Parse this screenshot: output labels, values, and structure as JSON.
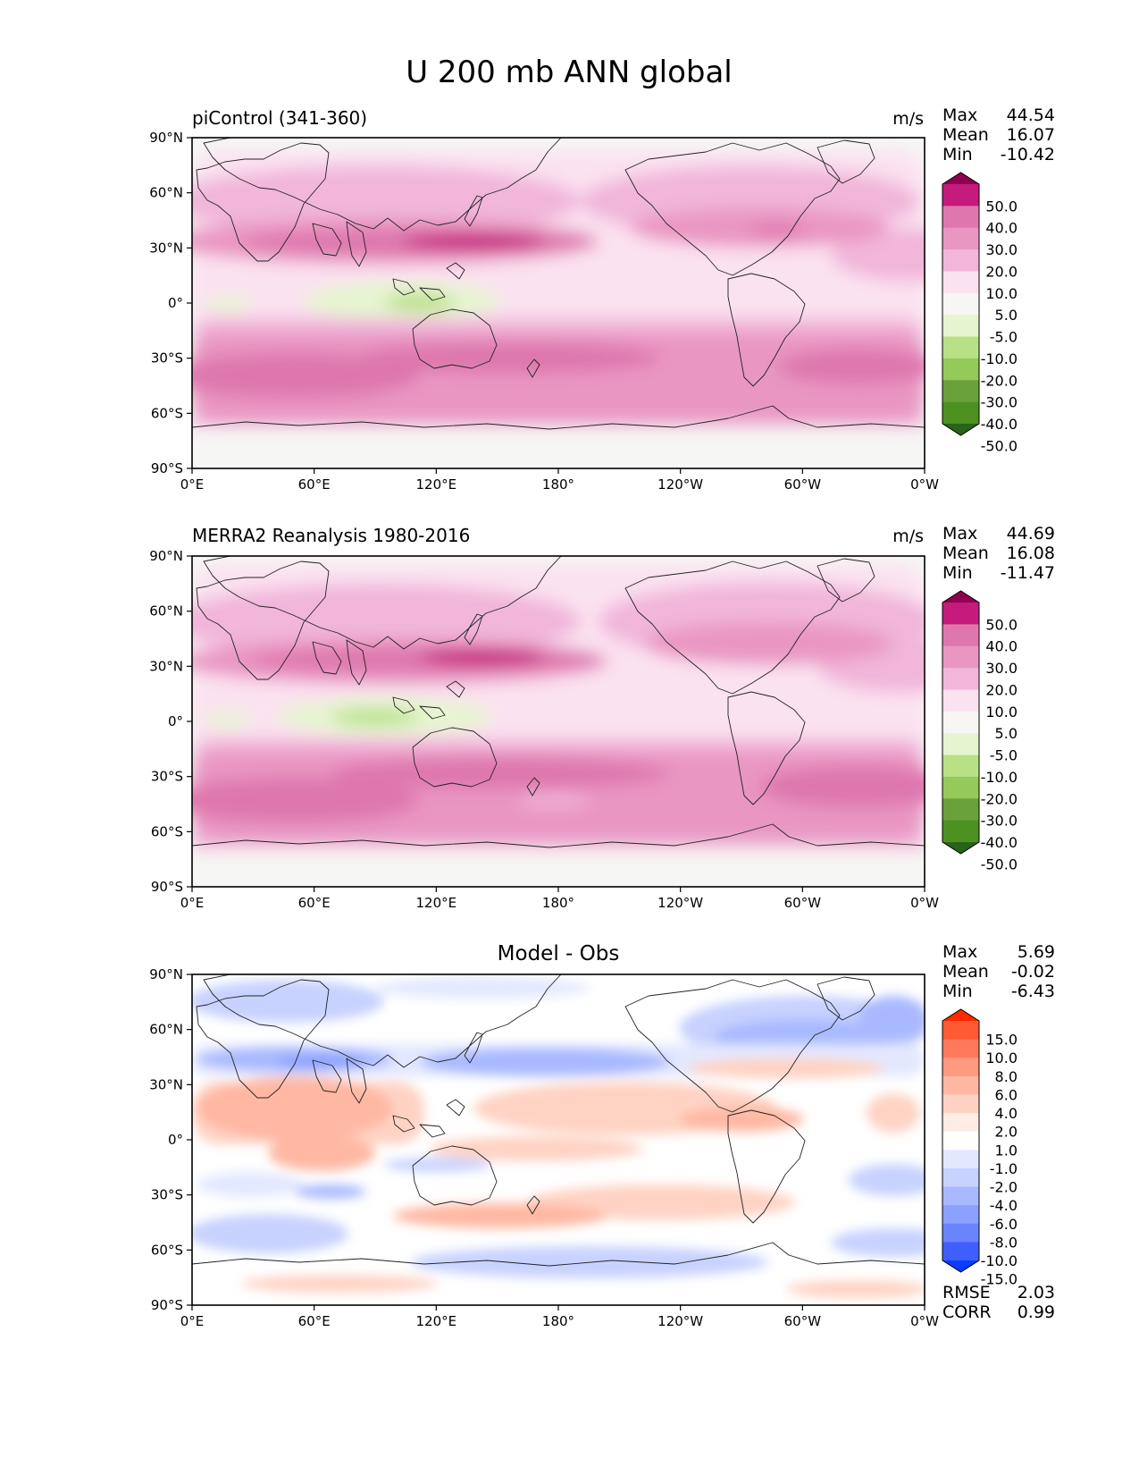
{
  "figure": {
    "title": "U 200 mb ANN global"
  },
  "axes": {
    "lon_ticks": [
      "0°E",
      "60°E",
      "120°E",
      "180°",
      "120°W",
      "60°W",
      "0°W"
    ],
    "lat_ticks": [
      "90°N",
      "60°N",
      "30°N",
      "0°",
      "30°S",
      "60°S",
      "90°S"
    ]
  },
  "panels": [
    {
      "title": "piControl (341-360)",
      "units": "m/s",
      "stats": [
        {
          "label": "Max",
          "value": "44.54"
        },
        {
          "label": "Mean",
          "value": "16.07"
        },
        {
          "label": "Min",
          "value": "-10.42"
        }
      ],
      "colorbar": {
        "labels": [
          "50.0",
          "40.0",
          "30.0",
          "20.0",
          "10.0",
          "5.0",
          "-5.0",
          "-10.0",
          "-20.0",
          "-30.0",
          "-40.0",
          "-50.0"
        ],
        "colors": [
          "#8e0152",
          "#c51b7d",
          "#de77ae",
          "#e996c3",
          "#f1b6da",
          "#fbe2f0",
          "#f6f6f4",
          "#e6f5d0",
          "#b8e186",
          "#95c95a",
          "#6aa13b",
          "#4d9221",
          "#276419"
        ]
      }
    },
    {
      "title": "MERRA2 Reanalysis 1980-2016",
      "units": "m/s",
      "stats": [
        {
          "label": "Max",
          "value": "44.69"
        },
        {
          "label": "Mean",
          "value": "16.08"
        },
        {
          "label": "Min",
          "value": "-11.47"
        }
      ],
      "colorbar": {
        "labels": [
          "50.0",
          "40.0",
          "30.0",
          "20.0",
          "10.0",
          "5.0",
          "-5.0",
          "-10.0",
          "-20.0",
          "-30.0",
          "-40.0",
          "-50.0"
        ],
        "colors": [
          "#8e0152",
          "#c51b7d",
          "#de77ae",
          "#e996c3",
          "#f1b6da",
          "#fbe2f0",
          "#f6f6f4",
          "#e6f5d0",
          "#b8e186",
          "#95c95a",
          "#6aa13b",
          "#4d9221",
          "#276419"
        ]
      }
    },
    {
      "title": "Model - Obs",
      "units": "",
      "stats": [
        {
          "label": "Max",
          "value": "5.69"
        },
        {
          "label": "Mean",
          "value": "-0.02"
        },
        {
          "label": "Min",
          "value": "-6.43"
        }
      ],
      "extra_stats": [
        {
          "label": "RMSE",
          "value": "2.03"
        },
        {
          "label": "CORR",
          "value": "0.99"
        }
      ],
      "colorbar": {
        "labels": [
          "15.0",
          "10.0",
          "8.0",
          "6.0",
          "4.0",
          "2.0",
          "1.0",
          "-1.0",
          "-2.0",
          "-4.0",
          "-6.0",
          "-8.0",
          "-10.0",
          "-15.0"
        ],
        "colors": [
          "#ff2a00",
          "#ff5a33",
          "#ff7a5c",
          "#ff9980",
          "#ffb8a3",
          "#ffd3c4",
          "#ffece5",
          "#ffffff",
          "#e3e8ff",
          "#c7d2ff",
          "#a9b9ff",
          "#8ba0ff",
          "#6a84ff",
          "#3f60ff",
          "#0a3dff"
        ]
      }
    }
  ]
}
